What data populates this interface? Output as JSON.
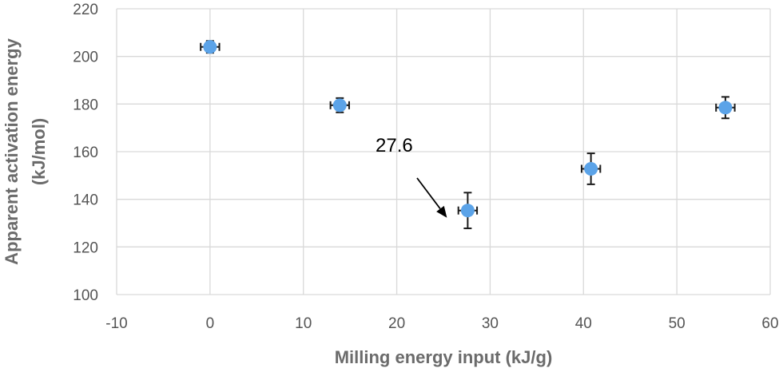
{
  "chart_data": {
    "type": "scatter",
    "title": "",
    "xlabel": "Milling energy input (kJ/g)",
    "ylabel_lines": [
      "Apparent activation energy",
      "(kJ/mol)"
    ],
    "xlim": [
      -10,
      60
    ],
    "ylim": [
      100,
      220
    ],
    "xticks": [
      -10,
      0,
      10,
      20,
      30,
      40,
      50,
      60
    ],
    "yticks": [
      100,
      120,
      140,
      160,
      180,
      200,
      220
    ],
    "grid": true,
    "series": [
      {
        "color": "#5ba3e8",
        "points": [
          {
            "x": 0,
            "y": 204,
            "xerr": 1,
            "yerr": 2.5
          },
          {
            "x": 13.9,
            "y": 179.5,
            "xerr": 1,
            "yerr": 3
          },
          {
            "x": 27.6,
            "y": 135.3,
            "xerr": 1,
            "yerr": 7.5
          },
          {
            "x": 40.8,
            "y": 152.8,
            "xerr": 1,
            "yerr": 6.5
          },
          {
            "x": 55.2,
            "y": 178.5,
            "xerr": 1,
            "yerr": 4.5
          }
        ]
      }
    ],
    "annotations": [
      {
        "text": "27.6",
        "points_to_x": 27.6,
        "points_to_y": 135.3
      }
    ]
  }
}
